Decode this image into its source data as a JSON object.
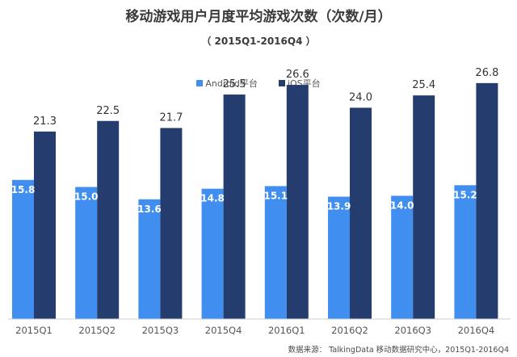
{
  "title": "移动游戏用户月度平均游戏次数（次数/月）",
  "subtitle": "（ 2015Q1-2016Q4 ）",
  "source": "数据来源：  TalkingData 移动数据研究中心，2015Q1-2016Q4",
  "colors": {
    "android": "#3f8ef0",
    "ios": "#253d6e"
  },
  "chart_data": {
    "type": "bar",
    "categories": [
      "2015Q1",
      "2015Q2",
      "2015Q3",
      "2015Q4",
      "2016Q1",
      "2016Q2",
      "2016Q3",
      "2016Q4"
    ],
    "series": [
      {
        "name": "Android平台",
        "values": [
          15.8,
          15.0,
          13.6,
          14.8,
          15.1,
          13.9,
          14.0,
          15.2
        ]
      },
      {
        "name": "iOS平台",
        "values": [
          21.3,
          22.5,
          21.7,
          25.5,
          26.6,
          24.0,
          25.4,
          26.8
        ]
      }
    ],
    "value_labels": {
      "android": [
        "15.8",
        "15.0",
        "13.6",
        "14.8",
        "15.1",
        "13.9",
        "14.0",
        "15.2"
      ],
      "ios": [
        "21.3",
        "22.5",
        "21.7",
        "25.5",
        "26.6",
        "24.0",
        "25.4",
        "26.8"
      ]
    },
    "ylim": [
      0,
      30
    ],
    "legend_position": "top-center",
    "grid": false
  }
}
